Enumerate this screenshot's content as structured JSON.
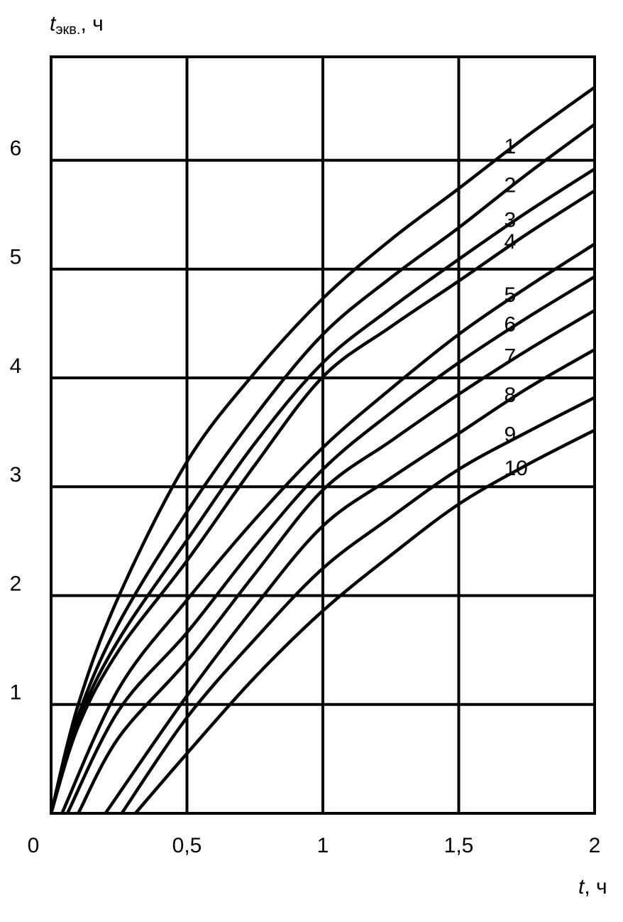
{
  "chart_data": {
    "type": "line",
    "y_label": {
      "symbol": "t",
      "subscript": "экв.",
      "unit": ", ч"
    },
    "x_label": {
      "symbol": "t",
      "unit": ", ч"
    },
    "xlim": [
      0,
      2
    ],
    "ylim": [
      0,
      6.95
    ],
    "xticks": [
      0,
      {
        "value": 0.5,
        "label": "0,5"
      },
      1,
      {
        "value": 1.5,
        "label": "1,5"
      },
      2
    ],
    "yticks": [
      1,
      2,
      3,
      4,
      5,
      6
    ],
    "grid": true,
    "color": "#000000",
    "series": [
      {
        "name": "1",
        "x": [
          0,
          0.1,
          0.25,
          0.5,
          0.75,
          1,
          1.25,
          1.5,
          1.75,
          2
        ],
        "values": [
          0,
          1.0,
          2.0,
          3.23,
          4.05,
          4.73,
          5.27,
          5.74,
          6.22,
          6.67
        ]
      },
      {
        "name": "2",
        "x": [
          0,
          0.1,
          0.25,
          0.5,
          0.75,
          1,
          1.25,
          1.5,
          1.75,
          2
        ],
        "values": [
          0,
          0.9,
          1.75,
          2.77,
          3.65,
          4.4,
          4.92,
          5.38,
          5.87,
          6.33
        ]
      },
      {
        "name": "3",
        "x": [
          0,
          0.1,
          0.25,
          0.5,
          0.75,
          1,
          1.25,
          1.5,
          1.75,
          2
        ],
        "values": [
          0,
          0.85,
          1.6,
          2.51,
          3.4,
          4.14,
          4.64,
          5.09,
          5.52,
          5.92
        ]
      },
      {
        "name": "4",
        "x": [
          0,
          0.1,
          0.25,
          0.5,
          0.75,
          1,
          1.25,
          1.5,
          1.75,
          2
        ],
        "values": [
          0,
          0.8,
          1.5,
          2.32,
          3.2,
          4.01,
          4.47,
          4.89,
          5.32,
          5.72
        ]
      },
      {
        "name": "5",
        "x": [
          0.04,
          0.25,
          0.5,
          0.75,
          1,
          1.25,
          1.5,
          1.75,
          2
        ],
        "values": [
          0,
          1.15,
          1.96,
          2.7,
          3.36,
          3.9,
          4.4,
          4.83,
          5.23
        ]
      },
      {
        "name": "6",
        "x": [
          0.06,
          0.25,
          0.5,
          0.75,
          1,
          1.25,
          1.5,
          1.75,
          2
        ],
        "values": [
          0,
          0.95,
          1.66,
          2.45,
          3.16,
          3.68,
          4.14,
          4.55,
          4.93
        ]
      },
      {
        "name": "7",
        "x": [
          0.1,
          0.25,
          0.5,
          0.75,
          1,
          1.25,
          1.5,
          1.75,
          2
        ],
        "values": [
          0,
          0.7,
          1.4,
          2.2,
          2.97,
          3.42,
          3.85,
          4.25,
          4.62
        ]
      },
      {
        "name": "8",
        "x": [
          0.2,
          0.5,
          0.75,
          1,
          1.25,
          1.5,
          1.75,
          2
        ],
        "values": [
          0,
          1.08,
          1.9,
          2.64,
          3.08,
          3.49,
          3.9,
          4.26
        ]
      },
      {
        "name": "9",
        "x": [
          0.26,
          0.5,
          0.75,
          1,
          1.25,
          1.5,
          1.75,
          2
        ],
        "values": [
          0,
          0.88,
          1.6,
          2.25,
          2.72,
          3.16,
          3.5,
          3.82
        ]
      },
      {
        "name": "10",
        "x": [
          0.31,
          0.5,
          0.75,
          1,
          1.25,
          1.5,
          1.75,
          2
        ],
        "values": [
          0,
          0.55,
          1.25,
          1.86,
          2.37,
          2.84,
          3.2,
          3.52
        ]
      }
    ]
  }
}
